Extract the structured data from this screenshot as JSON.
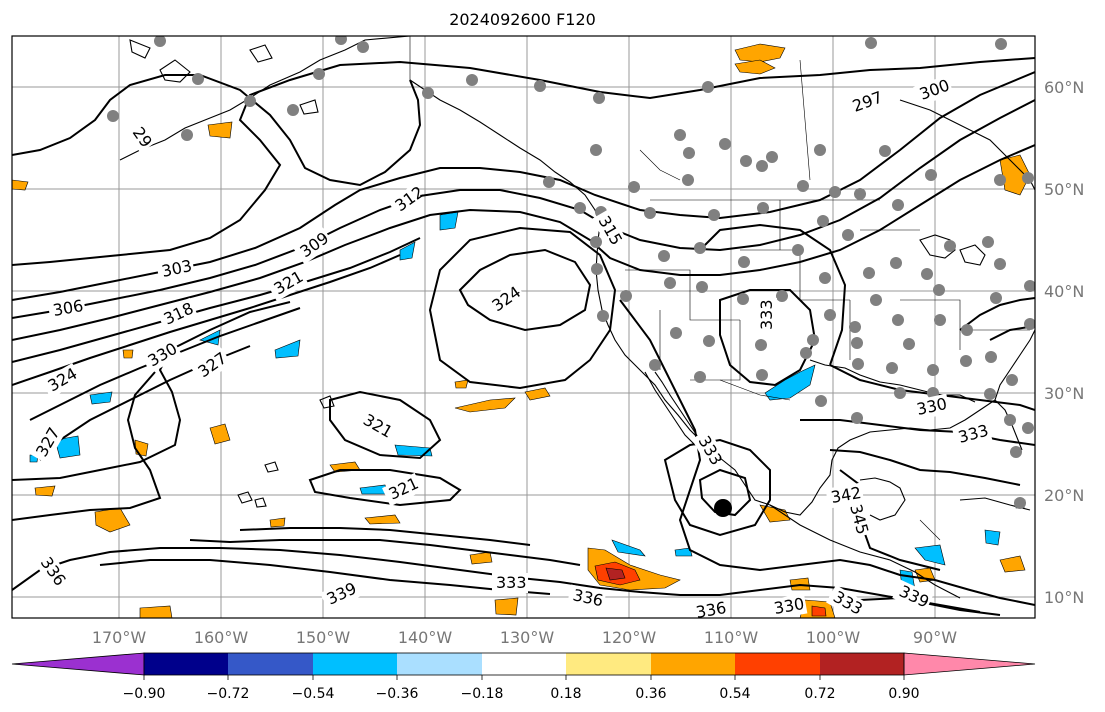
{
  "title": "2024092600 F120",
  "lat_labels": [
    "60°N",
    "50°N",
    "40°N",
    "30°N",
    "20°N",
    "10°N"
  ],
  "lon_labels": [
    "170°W",
    "160°W",
    "150°W",
    "140°W",
    "130°W",
    "120°W",
    "110°W",
    "100°W",
    "90°W"
  ],
  "contour_labels": [
    "297",
    "300",
    "29",
    "303",
    "306",
    "309",
    "312",
    "315",
    "318",
    "321",
    "324",
    "327",
    "330",
    "333",
    "336",
    "339",
    "342",
    "345"
  ],
  "colorbar": {
    "tick_labels": [
      "−0.90",
      "−0.72",
      "−0.54",
      "−0.36",
      "−0.18",
      "0.18",
      "0.36",
      "0.54",
      "0.72",
      "0.90"
    ],
    "colors": [
      "#9b30d0",
      "#00008b",
      "#3558c8",
      "#00bfff",
      "#aadfff",
      "#ffffff",
      "#ffea80",
      "#ffa500",
      "#ff4000",
      "#b22222",
      "#ff88aa"
    ]
  }
}
